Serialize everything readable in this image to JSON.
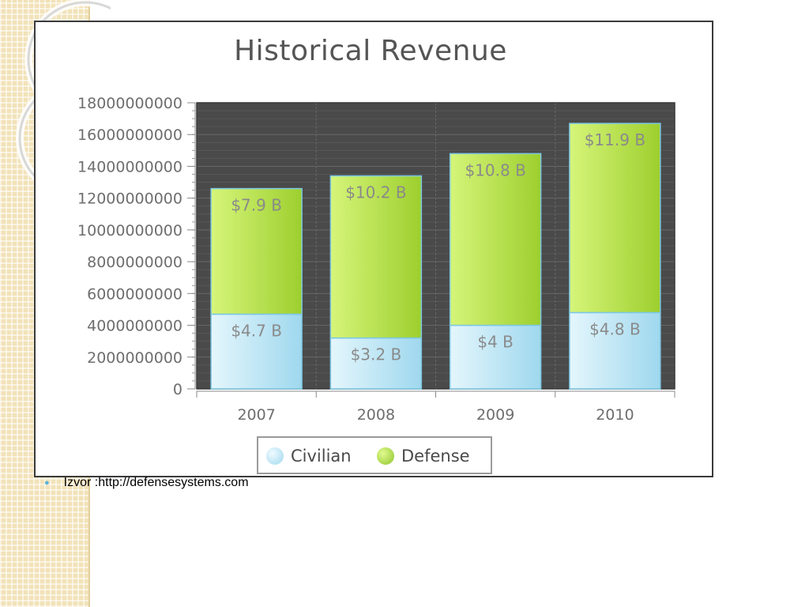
{
  "slide": {
    "source_text": "Izvor :http://defensesystems.com"
  },
  "colors": {
    "plot_bg": "#4a4a4a",
    "civilian_light": "#e4f6fc",
    "civilian_dark": "#9fd8ee",
    "defense_light": "#d6f57a",
    "defense_dark": "#9dcf2e",
    "bar_border": "#7cc7e2",
    "data_label": "#8a8a8a",
    "axis_text": "#6e6e6e"
  },
  "chart_data": {
    "type": "bar",
    "stacked": true,
    "title": "Historical Revenue",
    "xlabel": "",
    "ylabel": "",
    "categories": [
      "2007",
      "2008",
      "2009",
      "2010"
    ],
    "series": [
      {
        "name": "Civilian",
        "values": [
          4700000000,
          3200000000,
          4000000000,
          4800000000
        ],
        "labels": [
          "$4.7 B",
          "$3.2 B",
          "$4 B",
          "$4.8 B"
        ]
      },
      {
        "name": "Defense",
        "values": [
          7900000000,
          10200000000,
          10800000000,
          11900000000
        ],
        "labels": [
          "$7.9 B",
          "$10.2 B",
          "$10.8 B",
          "$11.9 B"
        ]
      }
    ],
    "ylim": [
      0,
      18000000000
    ],
    "yticks": [
      0,
      2000000000,
      4000000000,
      6000000000,
      8000000000,
      10000000000,
      12000000000,
      14000000000,
      16000000000,
      18000000000
    ],
    "ytick_labels": [
      "0",
      "2000000000",
      "4000000000",
      "6000000000",
      "8000000000",
      "10000000000",
      "12000000000",
      "14000000000",
      "16000000000",
      "18000000000"
    ],
    "grid": true,
    "legend": "bottom"
  }
}
